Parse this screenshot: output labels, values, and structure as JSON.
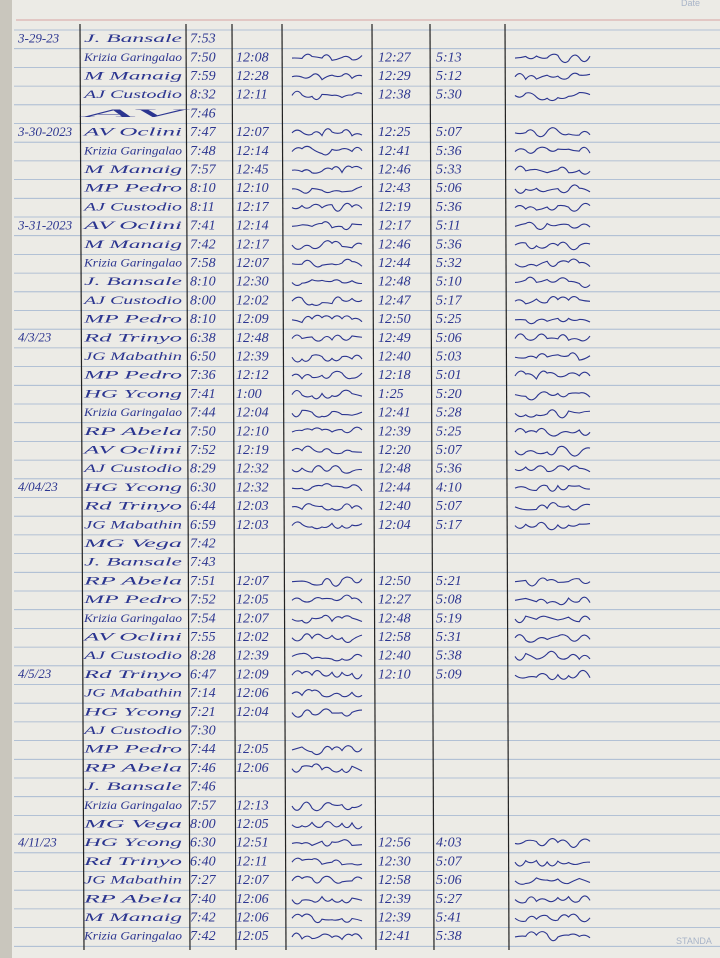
{
  "header": {
    "corner_label": "Date"
  },
  "footer": {
    "corner_label": "STANDA"
  },
  "rows": [
    {
      "date": "3-29-23",
      "name": "J. Bansale",
      "am_in": "7:53"
    },
    {
      "name": "Krizia Garingalao",
      "am_in": "7:50",
      "am_out": "12:08",
      "pm_in": "12:27",
      "pm_out": "5:13"
    },
    {
      "name": "M Manaig",
      "am_in": "7:59",
      "am_out": "12:28",
      "pm_in": "12:29",
      "pm_out": "5:12"
    },
    {
      "name": "AJ Custodio",
      "am_in": "8:32",
      "am_out": "12:11",
      "pm_in": "12:38",
      "pm_out": "5:30"
    },
    {
      "name": "AV",
      "am_in": "7:46"
    },
    {
      "date": "3-30-2023",
      "name": "AV Oclini",
      "am_in": "7:47",
      "am_out": "12:07",
      "pm_in": "12:25",
      "pm_out": "5:07"
    },
    {
      "name": "Krizia Garingalao",
      "am_in": "7:48",
      "am_out": "12:14",
      "pm_in": "12:41",
      "pm_out": "5:36"
    },
    {
      "name": "M Manaig",
      "am_in": "7:57",
      "am_out": "12:45",
      "pm_in": "12:46",
      "pm_out": "5:33"
    },
    {
      "name": "MP Pedro",
      "am_in": "8:10",
      "am_out": "12:10",
      "pm_in": "12:43",
      "pm_out": "5:06"
    },
    {
      "name": "AJ Custodio",
      "am_in": "8:11",
      "am_out": "12:17",
      "pm_in": "12:19",
      "pm_out": "5:36"
    },
    {
      "date": "3-31-2023",
      "name": "AV Oclini",
      "am_in": "7:41",
      "am_out": "12:14",
      "pm_in": "12:17",
      "pm_out": "5:11"
    },
    {
      "name": "M Manaig",
      "am_in": "7:42",
      "am_out": "12:17",
      "pm_in": "12:46",
      "pm_out": "5:36"
    },
    {
      "name": "Krizia Garingalao",
      "am_in": "7:58",
      "am_out": "12:07",
      "pm_in": "12:44",
      "pm_out": "5:32"
    },
    {
      "name": "J. Bansale",
      "am_in": "8:10",
      "am_out": "12:30",
      "pm_in": "12:48",
      "pm_out": "5:10"
    },
    {
      "name": "AJ Custodio",
      "am_in": "8:00",
      "am_out": "12:02",
      "pm_in": "12:47",
      "pm_out": "5:17"
    },
    {
      "name": "MP Pedro",
      "am_in": "8:10",
      "am_out": "12:09",
      "pm_in": "12:50",
      "pm_out": "5:25"
    },
    {
      "date": "4/3/23",
      "name": "Rd Trinyo",
      "am_in": "6:38",
      "am_out": "12:48",
      "pm_in": "12:49",
      "pm_out": "5:06"
    },
    {
      "name": "JG Mabathin",
      "am_in": "6:50",
      "am_out": "12:39",
      "pm_in": "12:40",
      "pm_out": "5:03"
    },
    {
      "name": "MP Pedro",
      "am_in": "7:36",
      "am_out": "12:12",
      "pm_in": "12:18",
      "pm_out": "5:01"
    },
    {
      "name": "HG Ycong",
      "am_in": "7:41",
      "am_out": "1:00",
      "pm_in": "1:25",
      "pm_out": "5:20"
    },
    {
      "name": "Krizia Garingalao",
      "am_in": "7:44",
      "am_out": "12:04",
      "pm_in": "12:41",
      "pm_out": "5:28"
    },
    {
      "name": "RP Abela",
      "am_in": "7:50",
      "am_out": "12:10",
      "pm_in": "12:39",
      "pm_out": "5:25"
    },
    {
      "name": "AV Oclini",
      "am_in": "7:52",
      "am_out": "12:19",
      "pm_in": "12:20",
      "pm_out": "5:07"
    },
    {
      "name": "AJ Custodio",
      "am_in": "8:29",
      "am_out": "12:32",
      "pm_in": "12:48",
      "pm_out": "5:36"
    },
    {
      "date": "4/04/23",
      "name": "HG Ycong",
      "am_in": "6:30",
      "am_out": "12:32",
      "pm_in": "12:44",
      "pm_out": "4:10"
    },
    {
      "name": "Rd Trinyo",
      "am_in": "6:44",
      "am_out": "12:03",
      "pm_in": "12:40",
      "pm_out": "5:07"
    },
    {
      "name": "JG Mabathin",
      "am_in": "6:59",
      "am_out": "12:03",
      "pm_in": "12:04",
      "pm_out": "5:17"
    },
    {
      "name": "MG Vega",
      "am_in": "7:42"
    },
    {
      "name": "J. Bansale",
      "am_in": "7:43"
    },
    {
      "name": "RP Abela",
      "am_in": "7:51",
      "am_out": "12:07",
      "pm_in": "12:50",
      "pm_out": "5:21"
    },
    {
      "name": "MP Pedro",
      "am_in": "7:52",
      "am_out": "12:05",
      "pm_in": "12:27",
      "pm_out": "5:08"
    },
    {
      "name": "Krizia Garingalao",
      "am_in": "7:54",
      "am_out": "12:07",
      "pm_in": "12:48",
      "pm_out": "5:19"
    },
    {
      "name": "AV Oclini",
      "am_in": "7:55",
      "am_out": "12:02",
      "pm_in": "12:58",
      "pm_out": "5:31"
    },
    {
      "name": "AJ Custodio",
      "am_in": "8:28",
      "am_out": "12:39",
      "pm_in": "12:40",
      "pm_out": "5:38"
    },
    {
      "date": "4/5/23",
      "name": "Rd Trinyo",
      "am_in": "6:47",
      "am_out": "12:09",
      "pm_in": "12:10",
      "pm_out": "5:09"
    },
    {
      "name": "JG Mabathin",
      "am_in": "7:14",
      "am_out": "12:06"
    },
    {
      "name": "HG Ycong",
      "am_in": "7:21",
      "am_out": "12:04"
    },
    {
      "name": "AJ Custodio",
      "am_in": "7:30"
    },
    {
      "name": "MP Pedro",
      "am_in": "7:44",
      "am_out": "12:05"
    },
    {
      "name": "RP Abela",
      "am_in": "7:46",
      "am_out": "12:06"
    },
    {
      "name": "J. Bansale",
      "am_in": "7:46"
    },
    {
      "name": "Krizia Garingalao",
      "am_in": "7:57",
      "am_out": "12:13"
    },
    {
      "name": "MG Vega",
      "am_in": "8:00",
      "am_out": "12:05"
    },
    {
      "date": "4/11/23",
      "name": "HG Ycong",
      "am_in": "6:30",
      "am_out": "12:51",
      "pm_in": "12:56",
      "pm_out": "4:03"
    },
    {
      "name": "Rd Trinyo",
      "am_in": "6:40",
      "am_out": "12:11",
      "pm_in": "12:30",
      "pm_out": "5:07"
    },
    {
      "name": "JG Mabathin",
      "am_in": "7:27",
      "am_out": "12:07",
      "pm_in": "12:58",
      "pm_out": "5:06"
    },
    {
      "name": "RP Abela",
      "am_in": "7:40",
      "am_out": "12:06",
      "pm_in": "12:39",
      "pm_out": "5:27"
    },
    {
      "name": "M Manaig",
      "am_in": "7:42",
      "am_out": "12:06",
      "pm_in": "12:39",
      "pm_out": "5:41"
    },
    {
      "name": "Krizia Garingalao",
      "am_in": "7:42",
      "am_out": "12:05",
      "pm_in": "12:41",
      "pm_out": "5:38"
    }
  ]
}
